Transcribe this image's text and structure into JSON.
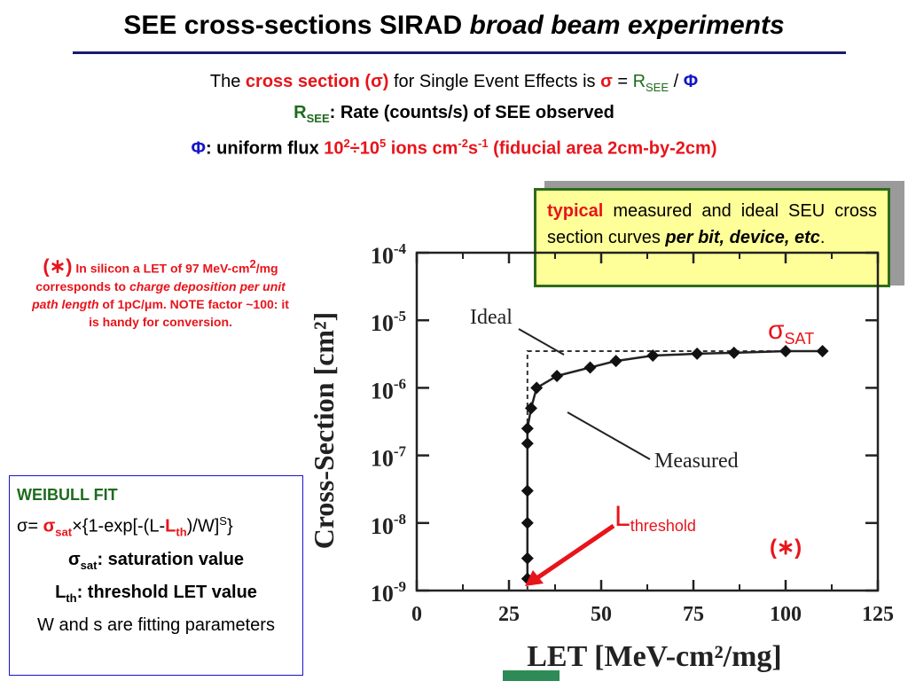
{
  "header": {
    "title_main": "SEE cross-sections SIRAD ",
    "title_italic": "broad beam experiments"
  },
  "intro": {
    "line1_a": "The ",
    "line1_b": "cross section",
    "line1_c": " (",
    "line1_sigma": "σ",
    "line1_d": ")",
    "line1_e": " for Single Event Effects is ",
    "line1_sigma2": "σ",
    "line1_eq": " = ",
    "line1_r": "R",
    "line1_rsub": "SEE",
    "line1_slash": " / ",
    "line1_phi": "Φ",
    "line2_r": "R",
    "line2_rsub": "SEE",
    "line2_text": ": Rate (counts/s) of SEE observed",
    "line3_phi": "Φ",
    "line3_a": ": uniform flux ",
    "line3_b1": "10",
    "line3_b1sup": "2",
    "line3_b2": "÷10",
    "line3_b2sup": "5",
    "line3_b3": " ions cm",
    "line3_b3sup": "-2",
    "line3_b4": "s",
    "line3_b4sup": "-1",
    "line3_b5": " (fiducial area 2cm-by-2cm)"
  },
  "note": {
    "star": "(∗)",
    "t1": " In silicon a LET of 97 MeV-cm",
    "t1sup": "2",
    "t2": "/mg corresponds to ",
    "t2_it": "charge deposition per unit path length",
    "t3": " of 1pC/",
    "t3_mu": "μ",
    "t4": "m. NOTE factor ~100: it is handy for conversion."
  },
  "typical_box": {
    "w1": "typical",
    "w2": " measured and ideal SEU cross section curves ",
    "w3": "per bit, device, etc",
    "w4": "."
  },
  "weibull": {
    "title": "WEIBULL FIT",
    "f_sigma": "σ",
    "f_eq": "= ",
    "f_sigsat": "σ",
    "f_satsub": "sat",
    "f_a": "×{1-exp[-(L-",
    "f_L": "L",
    "f_thsub": "th",
    "f_b": ")/W]",
    "f_bsup": "S",
    "f_c": "}",
    "l3_sig": "σ",
    "l3_sub": "sat",
    "l3_text": ": saturation value",
    "l4_L": "L",
    "l4_sub": "th",
    "l4_text": ": threshold LET value",
    "l5": "W and s are fitting parameters"
  },
  "colors": {
    "red": "#e8141b",
    "blue": "#1515c8",
    "green": "#1e6b1e",
    "box_fill": "#ffff99",
    "box_border": "#2e6b1a"
  },
  "chart_data": {
    "type": "scatter",
    "xlabel": "LET [MeV-cm²/mg]",
    "ylabel": "Cross-Section [cm²]",
    "xlim": [
      0,
      125
    ],
    "ylim": [
      1e-09,
      0.0001
    ],
    "y_log": true,
    "x_ticks": [
      "0",
      "25",
      "50",
      "75",
      "100",
      "125"
    ],
    "y_ticks": [
      {
        "base": "10",
        "exp": "-4"
      },
      {
        "base": "10",
        "exp": "-5"
      },
      {
        "base": "10",
        "exp": "-6"
      },
      {
        "base": "10",
        "exp": "-7"
      },
      {
        "base": "10",
        "exp": "-8"
      },
      {
        "base": "10",
        "exp": "-9"
      }
    ],
    "series": [
      {
        "name": "Measured",
        "x": [
          30,
          30,
          30,
          30,
          30,
          30,
          31,
          32.5,
          38,
          47,
          54,
          64,
          76,
          86,
          100,
          110
        ],
        "y": [
          1.5e-09,
          3e-09,
          1e-08,
          3e-08,
          1.5e-07,
          2.5e-07,
          5e-07,
          1e-06,
          1.5e-06,
          2e-06,
          2.5e-06,
          3e-06,
          3.2e-06,
          3.3e-06,
          3.5e-06,
          3.5e-06
        ]
      }
    ],
    "ideal": {
      "x": [
        30,
        30,
        110
      ],
      "y": [
        1e-09,
        3.5e-06,
        3.5e-06
      ]
    },
    "annotations": {
      "ideal": "Ideal",
      "measured": "Measured",
      "sigma_sat": "σ",
      "sigma_sat_sub": "SAT",
      "lthreshold": "L",
      "lthreshold_sub": "threshold",
      "star": "(∗)"
    }
  }
}
